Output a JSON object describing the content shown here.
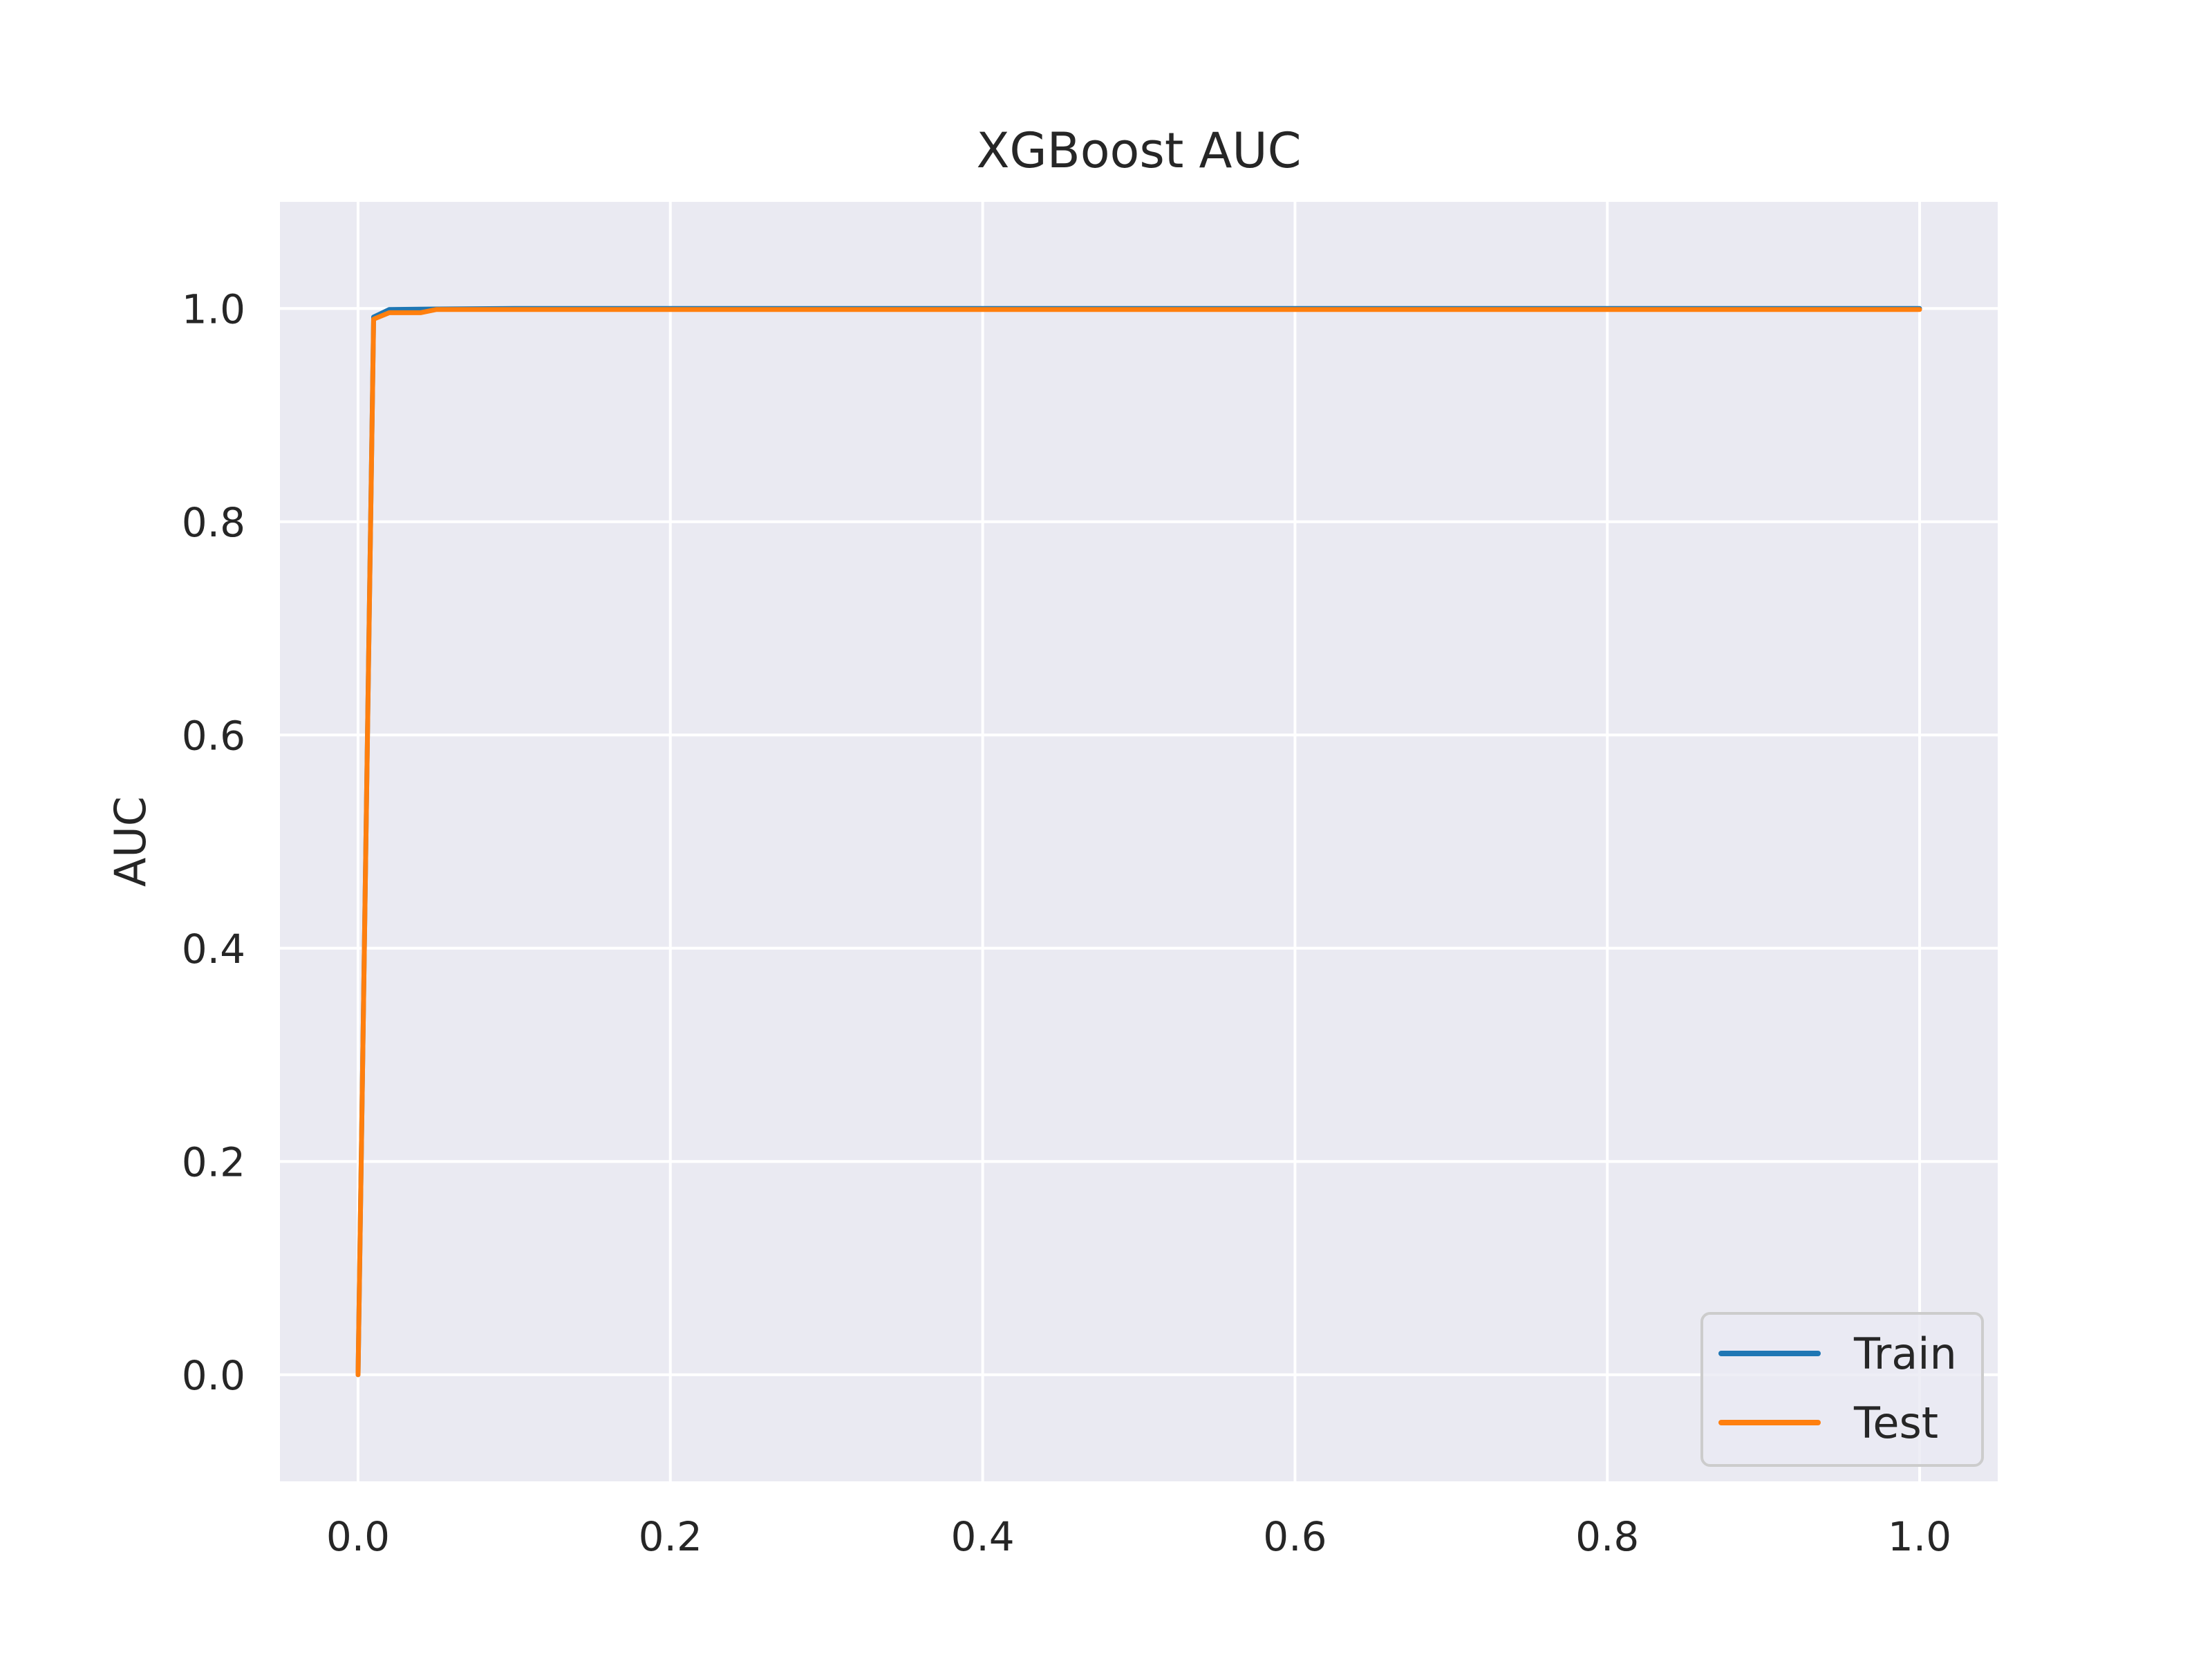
{
  "chart_data": {
    "type": "line",
    "title": "XGBoost AUC",
    "xlabel": "",
    "ylabel": "AUC",
    "xlim": [
      -0.05,
      1.05
    ],
    "ylim": [
      -0.1,
      1.1
    ],
    "xticks": [
      "0.0",
      "0.2",
      "0.4",
      "0.6",
      "0.8",
      "1.0"
    ],
    "yticks": [
      "0.0",
      "0.2",
      "0.4",
      "0.6",
      "0.8",
      "1.0"
    ],
    "grid": true,
    "legend_position": "bottom-right",
    "series": [
      {
        "name": "Train",
        "color": "#1f77b4",
        "x": [
          0.0,
          0.01,
          0.02,
          0.05,
          0.1,
          0.2,
          0.4,
          0.6,
          0.8,
          1.0
        ],
        "y": [
          0.0,
          0.992,
          0.999,
          0.9995,
          1.0,
          1.0,
          1.0,
          1.0,
          1.0,
          1.0
        ]
      },
      {
        "name": "Test",
        "color": "#ff7f0e",
        "x": [
          0.0,
          0.01,
          0.02,
          0.04,
          0.05,
          0.1,
          0.2,
          0.4,
          0.6,
          0.8,
          1.0
        ],
        "y": [
          0.0,
          0.99,
          0.996,
          0.996,
          0.999,
          0.999,
          0.999,
          0.999,
          0.999,
          0.999,
          0.999
        ]
      }
    ]
  }
}
